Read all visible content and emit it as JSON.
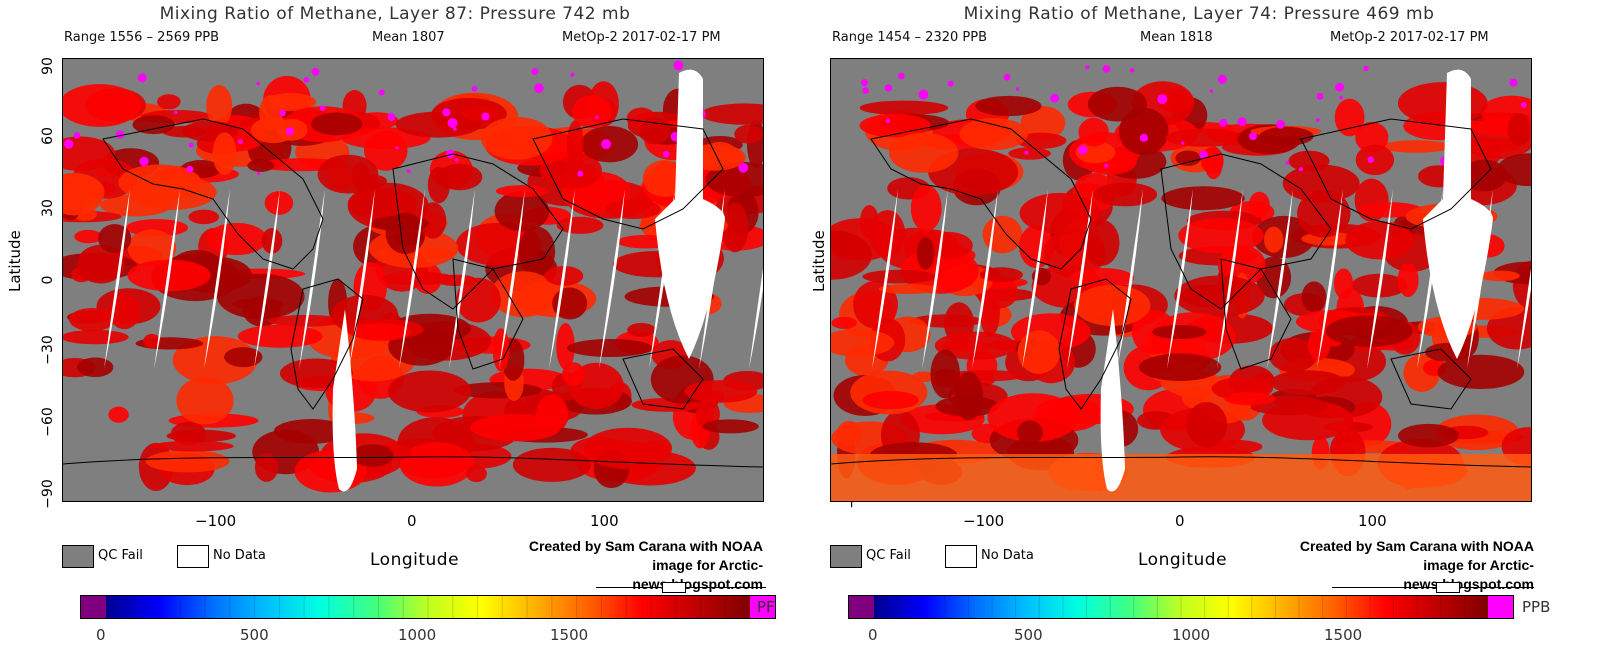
{
  "panels": [
    {
      "title": "Mixing Ratio of Methane, Layer 87: Pressure 742 mb",
      "range": "Range 1556 – 2569 PPB",
      "mean": "Mean 1807",
      "satellite": "MetOp-2 2017-02-17 PM",
      "unit": "PF"
    },
    {
      "title": "Mixing Ratio of Methane, Layer 74: Pressure 469 mb",
      "range": "Range 1454 – 2320 PPB",
      "mean": "Mean 1818",
      "satellite": "MetOp-2 2017-02-17 PM",
      "unit": "PPB"
    }
  ],
  "axes": {
    "ylabel": "Latitude",
    "xlabel": "Longitude",
    "yticks": [
      "90",
      "60",
      "30",
      "0",
      "−30",
      "−60",
      "−90"
    ],
    "xticks": [
      "−100",
      "0",
      "100"
    ]
  },
  "legend": {
    "qc_fail": "QC Fail",
    "no_data": "No Data"
  },
  "credit": {
    "line1": "Created by Sam Carana with NOAA",
    "line2": "image for Arctic-news.blogspot.com"
  },
  "colorbar": {
    "ticks": [
      "0",
      "500",
      "1000",
      "1500"
    ],
    "colors": [
      "#800080",
      "#000090",
      "#0000ff",
      "#0070ff",
      "#00c0ff",
      "#00ffe0",
      "#40ff80",
      "#c0ff20",
      "#ffff00",
      "#ffb000",
      "#ff6000",
      "#ff0000",
      "#c00000",
      "#800000",
      "#ff00ff"
    ]
  },
  "colors": {
    "methane_high": "#e60000",
    "methane_mid": "#ff2a00",
    "methane_dark": "#a50000",
    "qc_fail": "#7f7f7f",
    "no_data": "#ffffff",
    "magenta": "#ff00ff"
  }
}
